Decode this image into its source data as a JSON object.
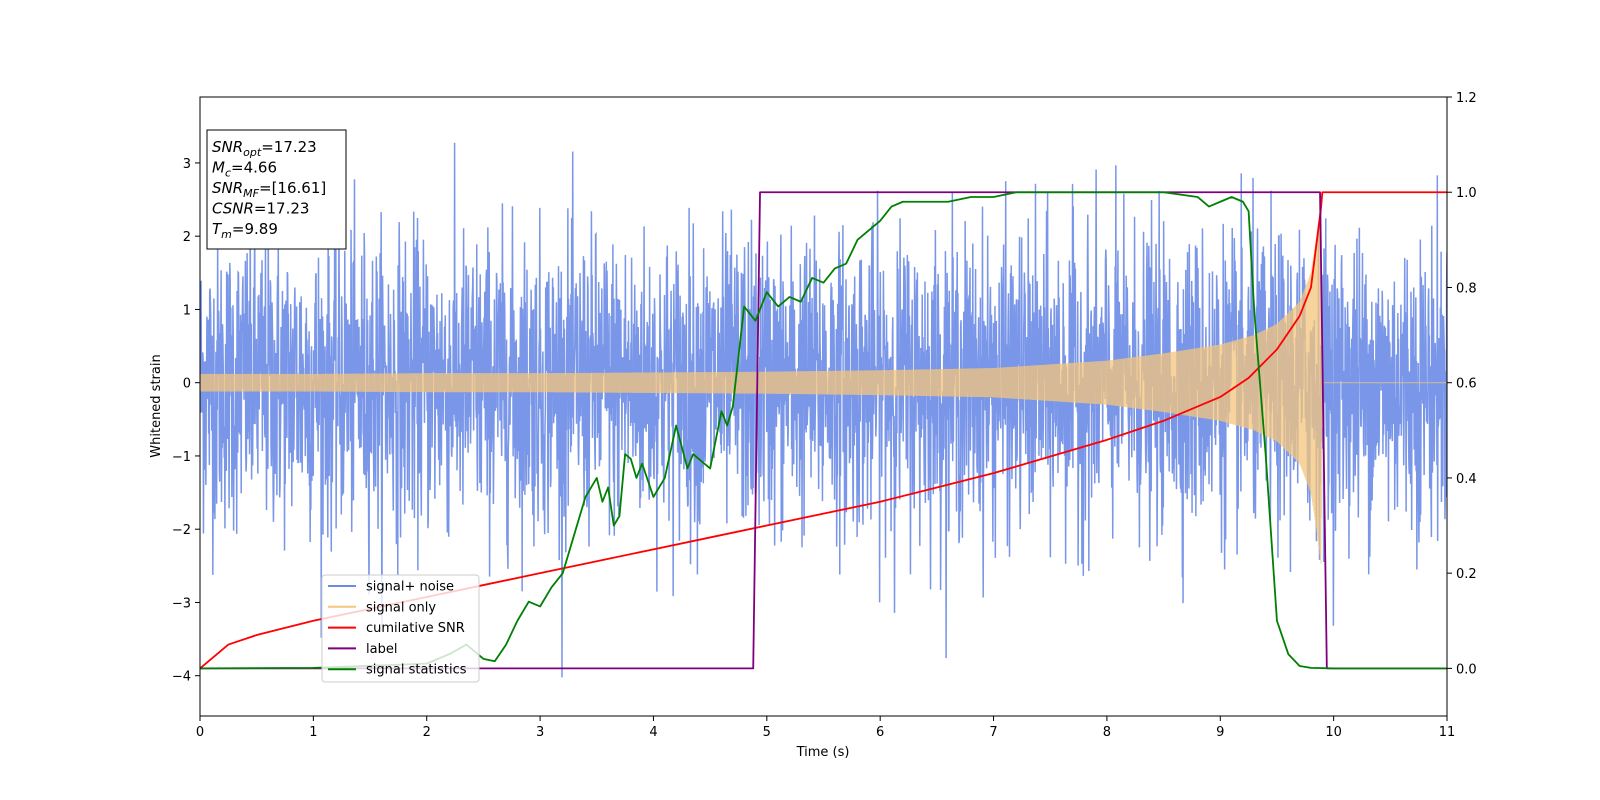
{
  "chart_data": {
    "type": "line",
    "xlabel": "Time (s)",
    "ylabel": "Whitened strain",
    "xlim": [
      0,
      11
    ],
    "ylim_left": [
      -4.55,
      3.9
    ],
    "ylim_right": [
      -0.1,
      1.2
    ],
    "x_ticks": [
      0,
      1,
      2,
      3,
      4,
      5,
      6,
      7,
      8,
      9,
      10,
      11
    ],
    "y_ticks_left": [
      -4,
      -3,
      -2,
      -1,
      0,
      1,
      2,
      3
    ],
    "y_ticks_right": [
      0.0,
      0.2,
      0.4,
      0.6,
      0.8,
      1.0,
      1.2
    ],
    "grid": false,
    "legend_placement": "lower-left",
    "annotation": {
      "lines": [
        {
          "main": "SNR",
          "sub": "opt",
          "value": "=17.23"
        },
        {
          "main": "M",
          "sub": "c",
          "value": "=4.66"
        },
        {
          "main": "SNR",
          "sub": "MF",
          "value": "=[16.61]"
        },
        {
          "main": "CSNR",
          "sub": "",
          "value": "=17.23"
        },
        {
          "main": "T",
          "sub": "m",
          "value": "=9.89"
        }
      ]
    },
    "series": [
      {
        "name": "signal+ noise",
        "axis": "left",
        "color": "#6a8be6",
        "description_values": {
          "noise_std": 1.0,
          "spike_min": -4.2,
          "spike_max": 3.5
        }
      },
      {
        "name": "signal only",
        "axis": "left",
        "color": "#f5c57c",
        "envelope": {
          "x": [
            0,
            1,
            2,
            3,
            4,
            5,
            6,
            7,
            8,
            8.5,
            9,
            9.3,
            9.5,
            9.7,
            9.8,
            9.85,
            9.89,
            9.9,
            11
          ],
          "amplitude": [
            0.12,
            0.12,
            0.13,
            0.13,
            0.14,
            0.15,
            0.17,
            0.2,
            0.3,
            0.4,
            0.52,
            0.65,
            0.8,
            1.1,
            1.5,
            2.0,
            2.5,
            0,
            0
          ]
        }
      },
      {
        "name": "cumilative SNR",
        "axis": "right",
        "color": "#ff0000",
        "x": [
          0,
          0.25,
          0.5,
          1,
          1.5,
          2,
          2.5,
          3,
          3.5,
          4,
          4.5,
          5,
          5.5,
          6,
          6.5,
          7,
          7.5,
          8,
          8.5,
          9,
          9.25,
          9.5,
          9.7,
          9.8,
          9.89,
          9.9,
          11
        ],
        "y": [
          0.0,
          0.05,
          0.07,
          0.1,
          0.125,
          0.15,
          0.175,
          0.2,
          0.225,
          0.25,
          0.275,
          0.3,
          0.325,
          0.35,
          0.38,
          0.41,
          0.445,
          0.48,
          0.52,
          0.57,
          0.61,
          0.67,
          0.74,
          0.8,
          0.97,
          1.0,
          1.0
        ]
      },
      {
        "name": "label",
        "axis": "right",
        "color": "#7f007f",
        "x": [
          0,
          4.88,
          4.94,
          9.88,
          9.94,
          11
        ],
        "y": [
          0.0,
          0.0,
          1.0,
          1.0,
          0.0,
          0.0
        ]
      },
      {
        "name": "signal statistics",
        "axis": "right",
        "color": "#008000",
        "x": [
          0,
          1,
          2,
          2.2,
          2.35,
          2.5,
          2.6,
          2.7,
          2.8,
          2.9,
          3.0,
          3.1,
          3.2,
          3.3,
          3.4,
          3.5,
          3.55,
          3.6,
          3.65,
          3.7,
          3.75,
          3.8,
          3.85,
          3.9,
          4.0,
          4.1,
          4.2,
          4.3,
          4.35,
          4.4,
          4.5,
          4.6,
          4.65,
          4.7,
          4.8,
          4.9,
          5.0,
          5.1,
          5.2,
          5.3,
          5.4,
          5.5,
          5.6,
          5.7,
          5.8,
          5.9,
          6.0,
          6.1,
          6.2,
          6.4,
          6.6,
          6.8,
          7.0,
          7.2,
          7.5,
          8.0,
          8.5,
          8.8,
          8.9,
          9.0,
          9.1,
          9.2,
          9.25,
          9.3,
          9.4,
          9.5,
          9.6,
          9.7,
          9.8,
          10,
          11
        ],
        "y": [
          0.0,
          0.001,
          0.01,
          0.03,
          0.05,
          0.02,
          0.015,
          0.05,
          0.1,
          0.14,
          0.13,
          0.17,
          0.2,
          0.28,
          0.36,
          0.4,
          0.35,
          0.38,
          0.3,
          0.32,
          0.45,
          0.44,
          0.4,
          0.43,
          0.36,
          0.4,
          0.51,
          0.42,
          0.45,
          0.44,
          0.42,
          0.54,
          0.51,
          0.55,
          0.76,
          0.73,
          0.79,
          0.76,
          0.78,
          0.77,
          0.82,
          0.81,
          0.84,
          0.85,
          0.9,
          0.92,
          0.94,
          0.97,
          0.98,
          0.98,
          0.98,
          0.99,
          0.99,
          1.0,
          1.0,
          1.0,
          1.0,
          0.99,
          0.97,
          0.98,
          0.99,
          0.98,
          0.96,
          0.75,
          0.45,
          0.1,
          0.03,
          0.005,
          0.001,
          0.0,
          0.0
        ]
      }
    ]
  }
}
